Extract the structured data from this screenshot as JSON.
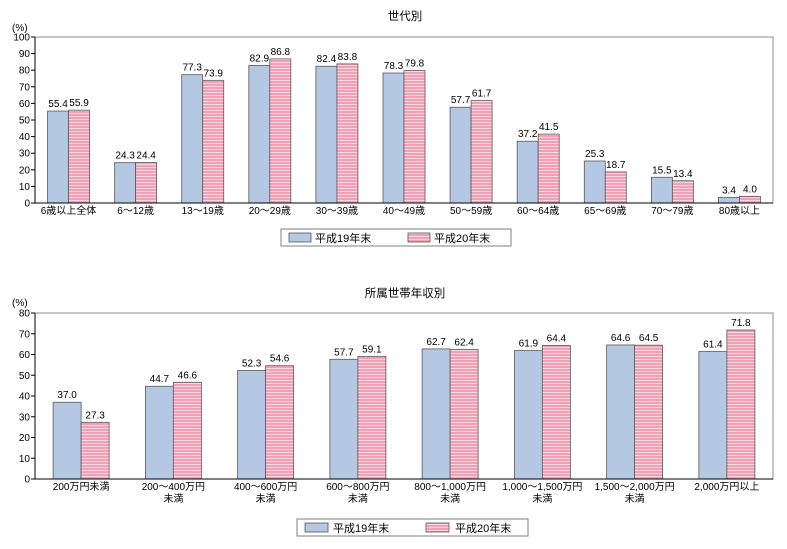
{
  "chart_data": [
    {
      "type": "bar",
      "title": "世代別",
      "ylabel": "(%)",
      "xlabel": "",
      "ylim": [
        0,
        100
      ],
      "yticks": [
        0,
        10,
        20,
        30,
        40,
        50,
        60,
        70,
        80,
        90,
        100
      ],
      "grid": false,
      "legend": "bottom",
      "categories": [
        "6歳以上全体",
        "6～12歳",
        "13～19歳",
        "20～29歳",
        "30～39歳",
        "40～49歳",
        "50～59歳",
        "60～64歳",
        "65～69歳",
        "70～79歳",
        "80歳以上"
      ],
      "series": [
        {
          "name": "平成19年末",
          "values": [
            55.4,
            24.3,
            77.3,
            82.9,
            82.4,
            78.3,
            57.7,
            37.2,
            25.3,
            15.5,
            3.4
          ],
          "color": "#b4c7e3"
        },
        {
          "name": "平成20年末",
          "values": [
            55.9,
            24.4,
            73.9,
            86.8,
            83.8,
            79.8,
            61.7,
            41.5,
            18.7,
            13.4,
            4.0
          ],
          "color": "#f4a0b4",
          "stripe_color": "#fbd8e1"
        }
      ]
    },
    {
      "type": "bar",
      "title": "所属世帯年収別",
      "ylabel": "(%)",
      "xlabel": "",
      "ylim": [
        0,
        80
      ],
      "yticks": [
        0,
        10,
        20,
        30,
        40,
        50,
        60,
        70,
        80
      ],
      "grid": false,
      "legend": "bottom",
      "categories": [
        [
          "200万円未満"
        ],
        [
          "200～400万円",
          "未満"
        ],
        [
          "400～600万円",
          "未満"
        ],
        [
          "600～800万円",
          "未満"
        ],
        [
          "800～1,000万円",
          "未満"
        ],
        [
          "1,000～1,500万円",
          "未満"
        ],
        [
          "1,500～2,000万円",
          "未満"
        ],
        [
          "2,000万円以上"
        ]
      ],
      "series": [
        {
          "name": "平成19年末",
          "values": [
            37.0,
            44.7,
            52.3,
            57.7,
            62.7,
            61.9,
            64.6,
            61.4
          ],
          "color": "#b4c7e3"
        },
        {
          "name": "平成20年末",
          "values": [
            27.3,
            46.6,
            54.6,
            59.1,
            62.4,
            64.4,
            64.5,
            71.8
          ],
          "color": "#f4a0b4",
          "stripe_color": "#fbd8e1"
        }
      ]
    }
  ]
}
